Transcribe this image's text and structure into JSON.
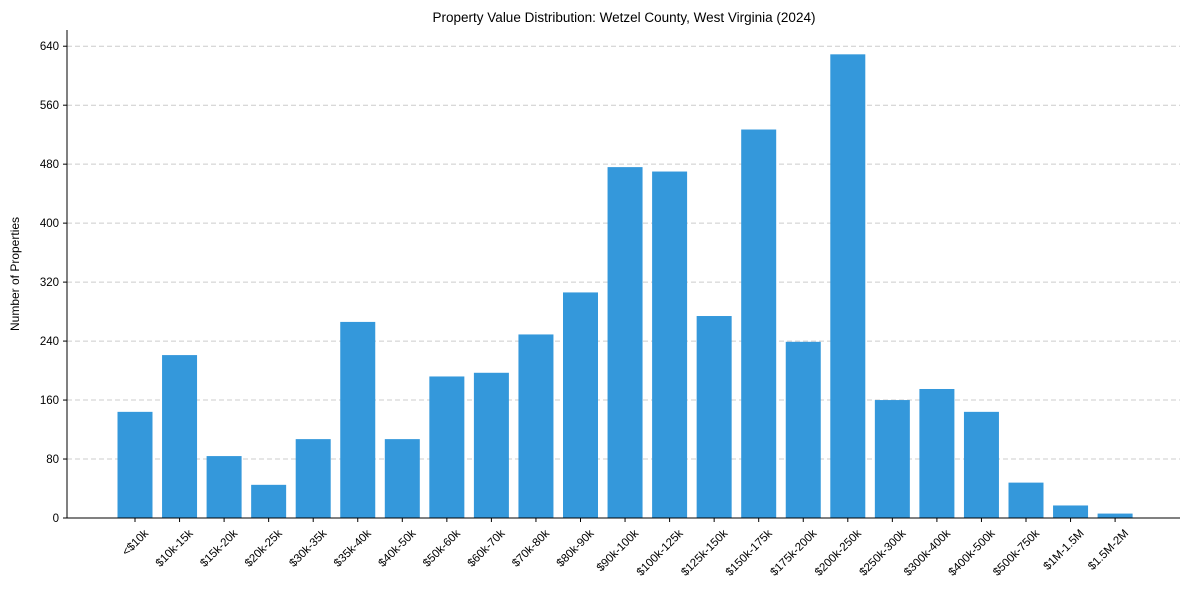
{
  "chart_data": {
    "type": "bar",
    "title": "Property Value Distribution: Wetzel County, West Virginia (2024)",
    "xlabel": "",
    "ylabel": "Number of Properties",
    "ylim": [
      0,
      662
    ],
    "yticks": [
      0,
      80,
      160,
      240,
      320,
      400,
      480,
      560,
      640
    ],
    "grid": "y-dashed",
    "bar_color": "#3498db",
    "categories": [
      "<$10k",
      "$10k-15k",
      "$15k-20k",
      "$20k-25k",
      "$30k-35k",
      "$35k-40k",
      "$40k-50k",
      "$50k-60k",
      "$60k-70k",
      "$70k-80k",
      "$80k-90k",
      "$90k-100k",
      "$100k-125k",
      "$125k-150k",
      "$150k-175k",
      "$175k-200k",
      "$200k-250k",
      "$250k-300k",
      "$300k-400k",
      "$400k-500k",
      "$500k-750k",
      "$1M-1.5M",
      "$1.5M-2M"
    ],
    "values": [
      144,
      221,
      84,
      45,
      107,
      266,
      107,
      192,
      197,
      249,
      306,
      476,
      470,
      274,
      527,
      239,
      629,
      160,
      175,
      144,
      48,
      17,
      6
    ]
  }
}
